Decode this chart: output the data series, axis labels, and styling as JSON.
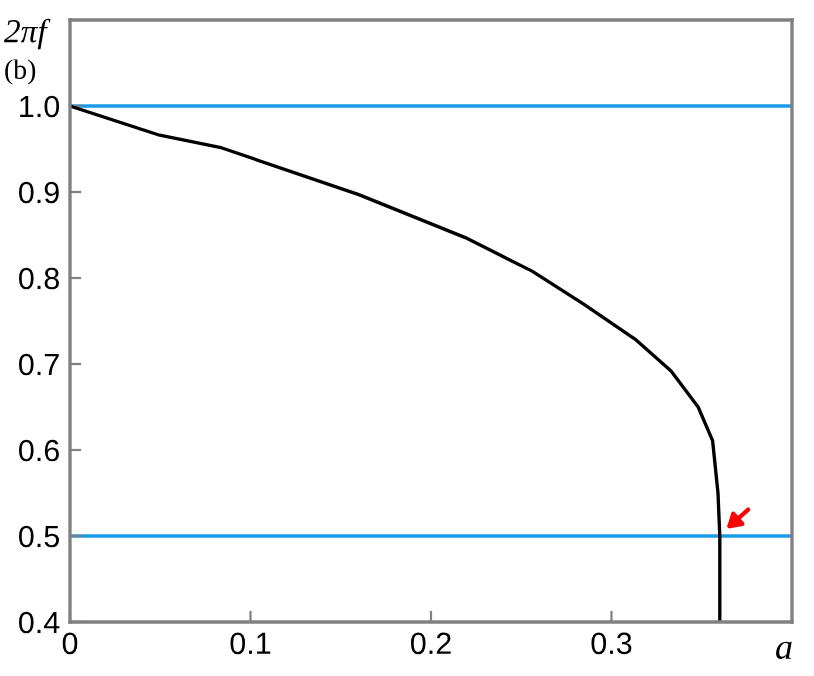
{
  "chart_data": {
    "type": "line",
    "ylabel": "2πf",
    "xlabel": "a",
    "annotations": [
      "(b)"
    ],
    "x": [
      0,
      0.0497,
      0.083,
      0.16,
      0.219,
      0.256,
      0.285,
      0.313,
      0.333,
      0.348,
      0.356,
      0.359,
      0.36,
      0.36
    ],
    "series": [
      {
        "color": "#000000",
        "values": [
          1.0,
          0.966,
          0.952,
          0.897,
          0.847,
          0.808,
          0.769,
          0.729,
          0.692,
          0.65,
          0.611,
          0.55,
          0.5,
          0.4
        ]
      }
    ],
    "xlim": [
      0,
      0.4
    ],
    "ylim": [
      0.4,
      1.1
    ],
    "xticks": [
      0,
      0.1,
      0.2,
      0.3
    ],
    "yticks": [
      {
        "value": 0.4,
        "label": "0.4"
      },
      {
        "value": 0.5,
        "label": "0.5"
      },
      {
        "value": 0.6,
        "label": "0.6"
      },
      {
        "value": 0.7,
        "label": "0.7"
      },
      {
        "value": 0.8,
        "label": "0.8"
      },
      {
        "value": 0.9,
        "label": "0.9"
      },
      {
        "value": 1.0,
        "label": "1.0"
      }
    ],
    "ref_lines": [
      {
        "axis": "y",
        "value": 1.0,
        "color": "#1a9be8"
      },
      {
        "axis": "y",
        "value": 0.5,
        "color": "#1a9be8"
      }
    ],
    "grid": false,
    "legend": false,
    "marker": "none",
    "line_style": "solid"
  }
}
